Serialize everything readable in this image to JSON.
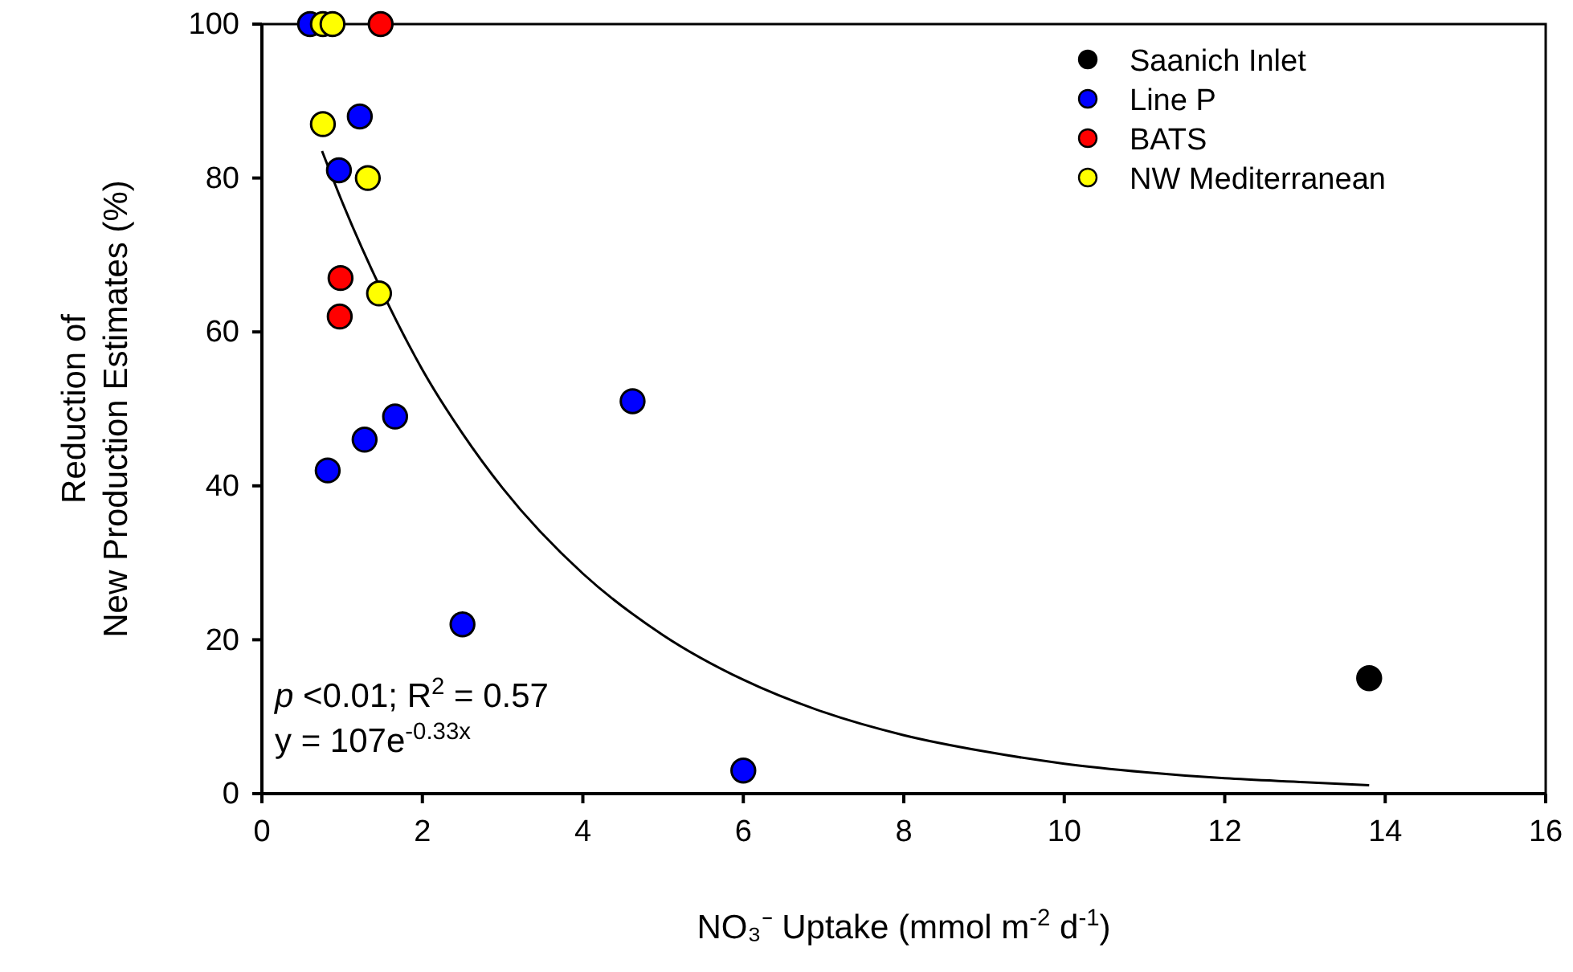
{
  "chart_data": {
    "type": "scatter",
    "xlabel": "NO₃⁻ Uptake (mmol m$^{-2}$ d$^{-1}$)",
    "ylabel": "Reduction of\nNew Production Estimates (%)",
    "xlim": [
      0,
      16
    ],
    "xticks": [
      0,
      2,
      4,
      6,
      8,
      10,
      12,
      14,
      16
    ],
    "ylim": [
      0,
      100
    ],
    "yticks": [
      0,
      20,
      40,
      60,
      80,
      100
    ],
    "grid": false,
    "legend": "top right",
    "marker": "circle",
    "annotations": [
      "p <0.01; R$^{2}$ = 0.57",
      "y = 107e$^{-0.33x}$"
    ],
    "series": [
      {
        "type": "line",
        "color": "#000000",
        "marker": "none",
        "x": [
          0.75,
          1,
          1.5,
          2,
          2.5,
          3,
          4,
          5,
          6,
          7,
          8,
          9,
          10,
          11,
          12,
          13,
          13.8
        ],
        "values": [
          83.5,
          76.9,
          65.2,
          55.1,
          46.8,
          39.7,
          28.6,
          20.6,
          14.8,
          10.6,
          7.6,
          5.5,
          3.9,
          2.8,
          2.0,
          1.5,
          1.1
        ]
      },
      {
        "name": "Saanich Inlet",
        "color": "#000000",
        "x": [
          13.8
        ],
        "values": [
          15
        ]
      },
      {
        "name": "Line P",
        "color": "#0000ff",
        "x": [
          0.6,
          1.22,
          0.96,
          1.66,
          1.28,
          0.82,
          4.62,
          2.5,
          6.0
        ],
        "values": [
          100,
          88,
          81,
          49,
          46,
          42,
          51,
          22,
          3
        ]
      },
      {
        "name": "BATS",
        "color": "#ff0000",
        "x": [
          1.48,
          0.98,
          0.97
        ],
        "values": [
          100,
          67,
          62
        ]
      },
      {
        "name": "NW Mediterranean",
        "color": "#ffff00",
        "x": [
          0.76,
          0.88,
          0.76,
          1.32,
          1.46
        ],
        "values": [
          100,
          100,
          87,
          80,
          65
        ]
      }
    ]
  }
}
